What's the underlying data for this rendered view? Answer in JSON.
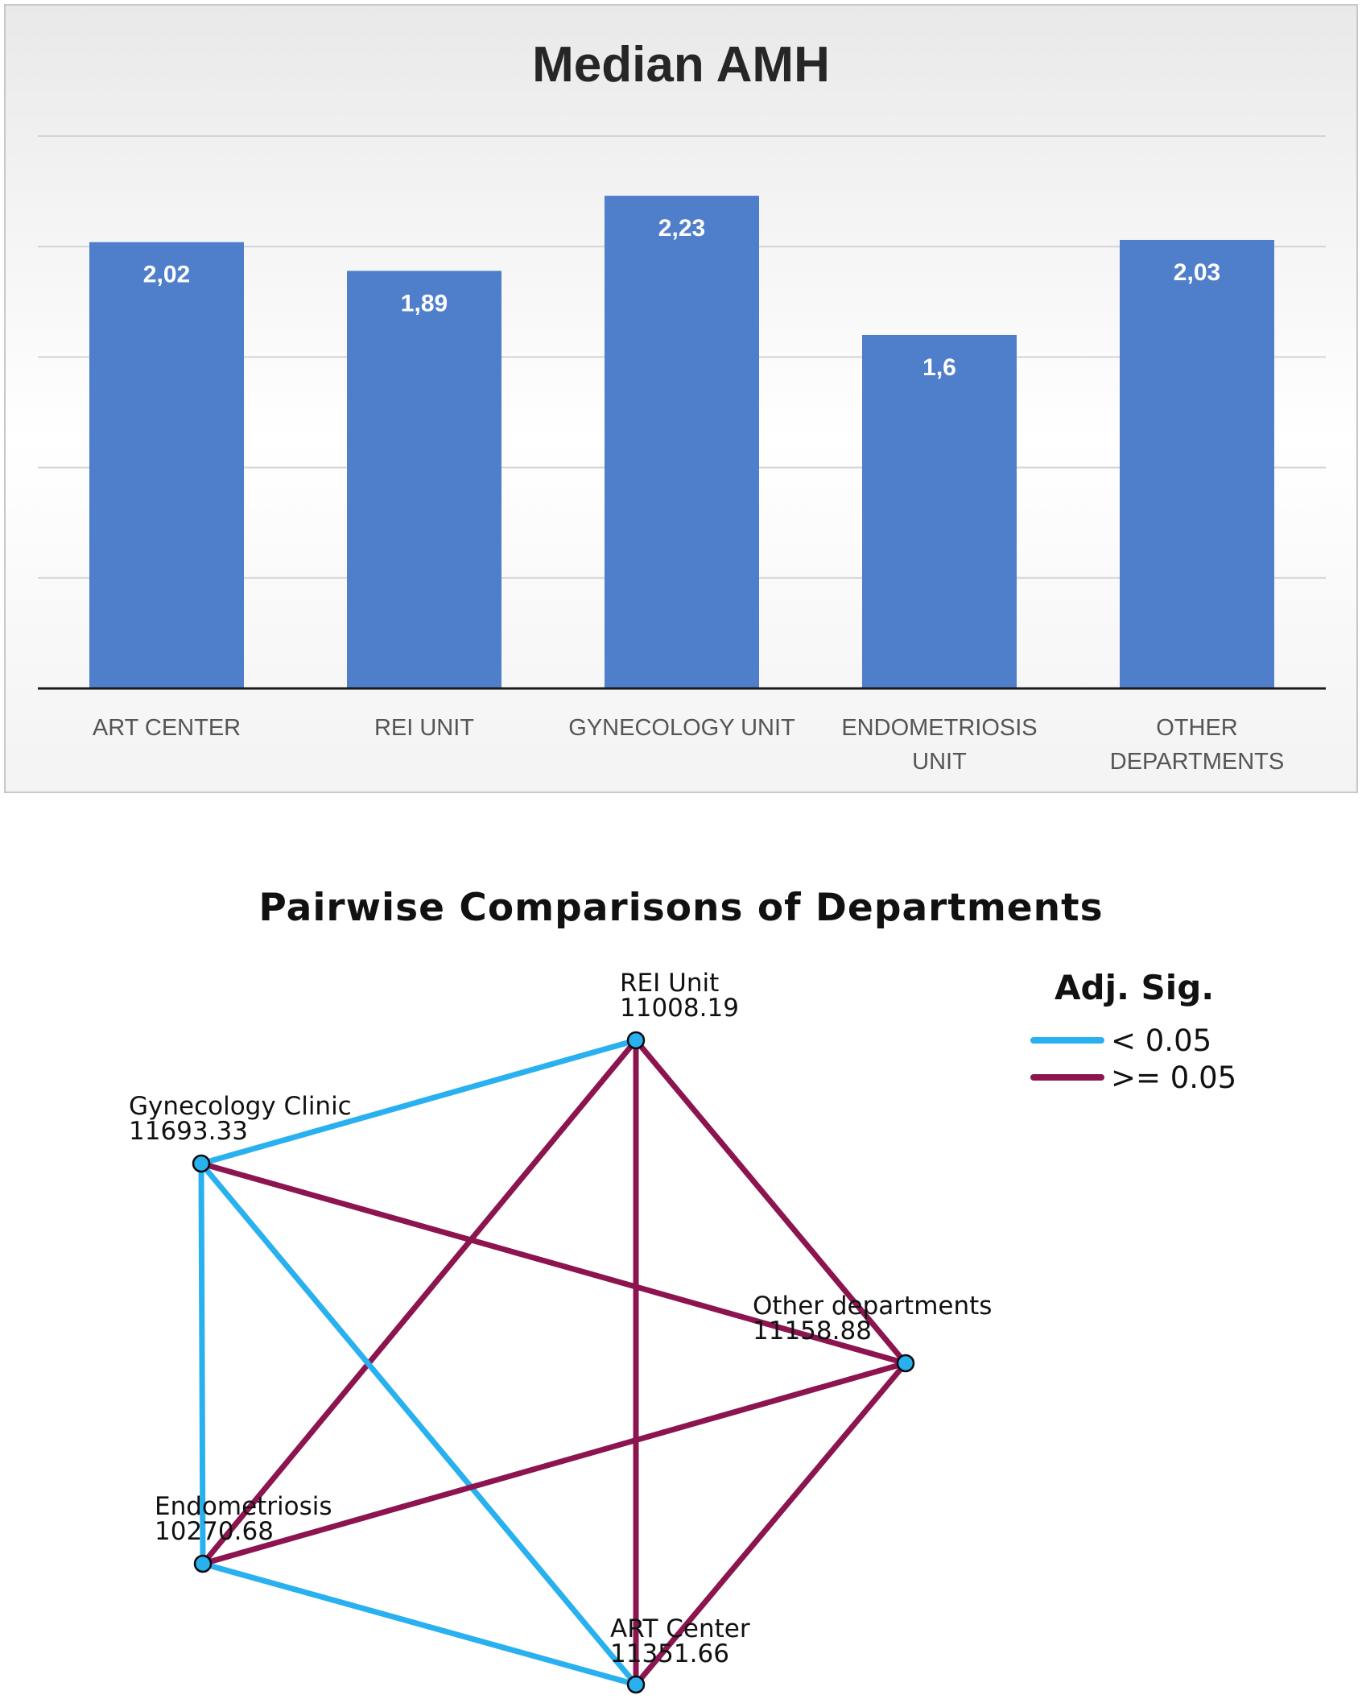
{
  "chart_data": [
    {
      "type": "bar",
      "title": "Median AMH",
      "categories": [
        "ART CENTER",
        "REI UNIT",
        "GYNECOLOGY UNIT",
        "ENDOMETRIOSIS UNIT",
        "OTHER DEPARTMENTS"
      ],
      "category_lines": [
        [
          "ART CENTER"
        ],
        [
          "REI UNIT"
        ],
        [
          "GYNECOLOGY UNIT"
        ],
        [
          "ENDOMETRIOSIS",
          "UNIT"
        ],
        [
          "OTHER",
          "DEPARTMENTS"
        ]
      ],
      "values": [
        2.02,
        1.89,
        2.23,
        1.6,
        2.03
      ],
      "value_labels": [
        "2,02",
        "1,89",
        "2,23",
        "1,6",
        "2,03"
      ],
      "ylim": [
        0,
        2.5
      ],
      "grid": true,
      "bar_color": "#4f7ecb"
    },
    {
      "type": "network",
      "title": "Pairwise Comparisons of Departments",
      "nodes": [
        {
          "name": "REI Unit",
          "value": "11008.19"
        },
        {
          "name": "Gynecology Clinic",
          "value": "11693.33"
        },
        {
          "name": "Other departments",
          "value": "11158.88"
        },
        {
          "name": "Endometriosis",
          "value": "10270.68"
        },
        {
          "name": "ART Center",
          "value": "11351.66"
        }
      ],
      "edges": [
        {
          "from": "REI Unit",
          "to": "Gynecology Clinic",
          "sig": "< 0.05"
        },
        {
          "from": "REI Unit",
          "to": "Endometriosis",
          "sig": ">= 0.05"
        },
        {
          "from": "REI Unit",
          "to": "ART Center",
          "sig": ">= 0.05"
        },
        {
          "from": "REI Unit",
          "to": "Other departments",
          "sig": ">= 0.05"
        },
        {
          "from": "Gynecology Clinic",
          "to": "Other departments",
          "sig": ">= 0.05"
        },
        {
          "from": "Gynecology Clinic",
          "to": "Endometriosis",
          "sig": "< 0.05"
        },
        {
          "from": "Gynecology Clinic",
          "to": "ART Center",
          "sig": "< 0.05"
        },
        {
          "from": "Other departments",
          "to": "Endometriosis",
          "sig": ">= 0.05"
        },
        {
          "from": "Other departments",
          "to": "ART Center",
          "sig": ">= 0.05"
        },
        {
          "from": "Endometriosis",
          "to": "ART Center",
          "sig": "< 0.05"
        }
      ],
      "legend": {
        "title": "Adj. Sig.",
        "items": [
          {
            "label": "< 0.05",
            "color": "#29b0ef"
          },
          {
            "label": ">= 0.05",
            "color": "#8c1550"
          }
        ],
        "placement": "top-right"
      },
      "node_color": "#29b0ef"
    }
  ]
}
